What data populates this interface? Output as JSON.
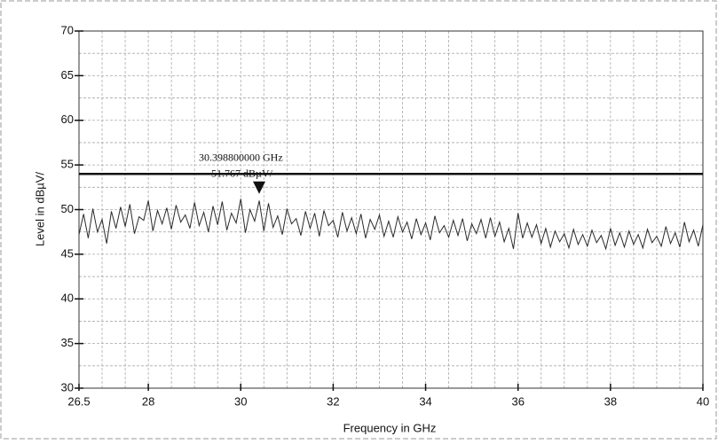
{
  "chart_data": {
    "type": "line",
    "xlabel": "Frequency in GHz",
    "ylabel": "Level in dBµV/",
    "xlim": [
      26.5,
      40
    ],
    "xticks": [
      26.5,
      28,
      30,
      32,
      34,
      36,
      38,
      40
    ],
    "ylim": [
      30,
      70
    ],
    "yticks": [
      30,
      35,
      40,
      45,
      50,
      55,
      60,
      65,
      70
    ],
    "xgrid": [
      27,
      27.5,
      28,
      28.5,
      29,
      29.5,
      30,
      30.5,
      31,
      31.5,
      32,
      32.5,
      33,
      33.5,
      34,
      34.5,
      35,
      35.5,
      36,
      36.5,
      37,
      37.5,
      38,
      38.5,
      39,
      39.5
    ],
    "ygrid": [
      32.5,
      35,
      37.5,
      40,
      42.5,
      45,
      47.5,
      50,
      52.5,
      55,
      57.5,
      60,
      62.5,
      65,
      67.5
    ],
    "grid": true,
    "limit_line": 54,
    "limit_color": "#111111",
    "marker": {
      "x": 30.3988,
      "y": 51.767,
      "label_freq": "30.398800000 GHz",
      "label_level": "51.767 dBµV/"
    },
    "series": [
      {
        "color": "#2a2a2a",
        "x": [
          26.5,
          26.6,
          26.7,
          26.8,
          26.9,
          27,
          27.1,
          27.2,
          27.3,
          27.4,
          27.5,
          27.6,
          27.7,
          27.8,
          27.9,
          28,
          28.1,
          28.2,
          28.3,
          28.4,
          28.5,
          28.6,
          28.7,
          28.8,
          28.9,
          29,
          29.1,
          29.2,
          29.3,
          29.4,
          29.5,
          29.6,
          29.7,
          29.8,
          29.9,
          30,
          30.1,
          30.2,
          30.3,
          30.4,
          30.5,
          30.6,
          30.7,
          30.8,
          30.9,
          31,
          31.1,
          31.2,
          31.3,
          31.4,
          31.5,
          31.6,
          31.7,
          31.8,
          31.9,
          32,
          32.1,
          32.2,
          32.3,
          32.4,
          32.5,
          32.6,
          32.7,
          32.8,
          32.9,
          33,
          33.1,
          33.2,
          33.3,
          33.4,
          33.5,
          33.6,
          33.7,
          33.8,
          33.9,
          34,
          34.1,
          34.2,
          34.3,
          34.4,
          34.5,
          34.6,
          34.7,
          34.8,
          34.9,
          35,
          35.1,
          35.2,
          35.3,
          35.4,
          35.5,
          35.6,
          35.7,
          35.8,
          35.9,
          36,
          36.1,
          36.2,
          36.3,
          36.4,
          36.5,
          36.6,
          36.7,
          36.8,
          36.9,
          37,
          37.1,
          37.2,
          37.3,
          37.4,
          37.5,
          37.6,
          37.7,
          37.8,
          37.9,
          38,
          38.1,
          38.2,
          38.3,
          38.4,
          38.5,
          38.6,
          38.7,
          38.8,
          38.9,
          39,
          39.1,
          39.2,
          39.3,
          39.4,
          39.5,
          39.6,
          39.7,
          39.8,
          39.9,
          40
        ],
        "values": [
          47.2,
          49.5,
          46.8,
          50.1,
          47.5,
          48.9,
          46.2,
          49.8,
          47.9,
          50.3,
          48.1,
          50.6,
          47.3,
          49.2,
          48.8,
          51.0,
          47.6,
          49.9,
          48.4,
          50.2,
          47.8,
          50.5,
          48.6,
          49.4,
          47.9,
          50.8,
          48.2,
          49.7,
          47.5,
          50.4,
          48.3,
          50.9,
          47.7,
          49.6,
          48.5,
          51.2,
          47.4,
          50.0,
          48.7,
          51.0,
          47.6,
          50.7,
          48.0,
          49.3,
          47.2,
          50.1,
          48.4,
          49.0,
          47.1,
          49.8,
          47.9,
          49.6,
          47.0,
          49.9,
          48.2,
          48.8,
          46.9,
          49.7,
          47.6,
          49.1,
          47.3,
          49.5,
          46.8,
          48.9,
          47.8,
          49.4,
          47.0,
          48.7,
          46.9,
          49.2,
          47.5,
          48.6,
          46.7,
          49.0,
          47.2,
          48.5,
          46.6,
          49.3,
          47.4,
          48.2,
          46.9,
          48.8,
          47.1,
          49.0,
          46.5,
          48.4,
          47.3,
          48.9,
          46.8,
          49.1,
          47.0,
          48.6,
          46.4,
          47.9,
          45.6,
          49.6,
          46.8,
          48.5,
          46.9,
          48.3,
          46.2,
          47.9,
          45.8,
          47.6,
          46.4,
          47.3,
          45.7,
          47.8,
          46.1,
          47.2,
          45.9,
          47.7,
          46.3,
          47.1,
          45.6,
          47.9,
          46.0,
          47.4,
          45.8,
          47.6,
          46.1,
          47.2,
          45.7,
          47.8,
          46.3,
          47.0,
          45.9,
          48.1,
          46.2,
          47.4,
          45.8,
          48.6,
          46.4,
          47.7,
          45.9,
          48.3
        ]
      }
    ]
  }
}
